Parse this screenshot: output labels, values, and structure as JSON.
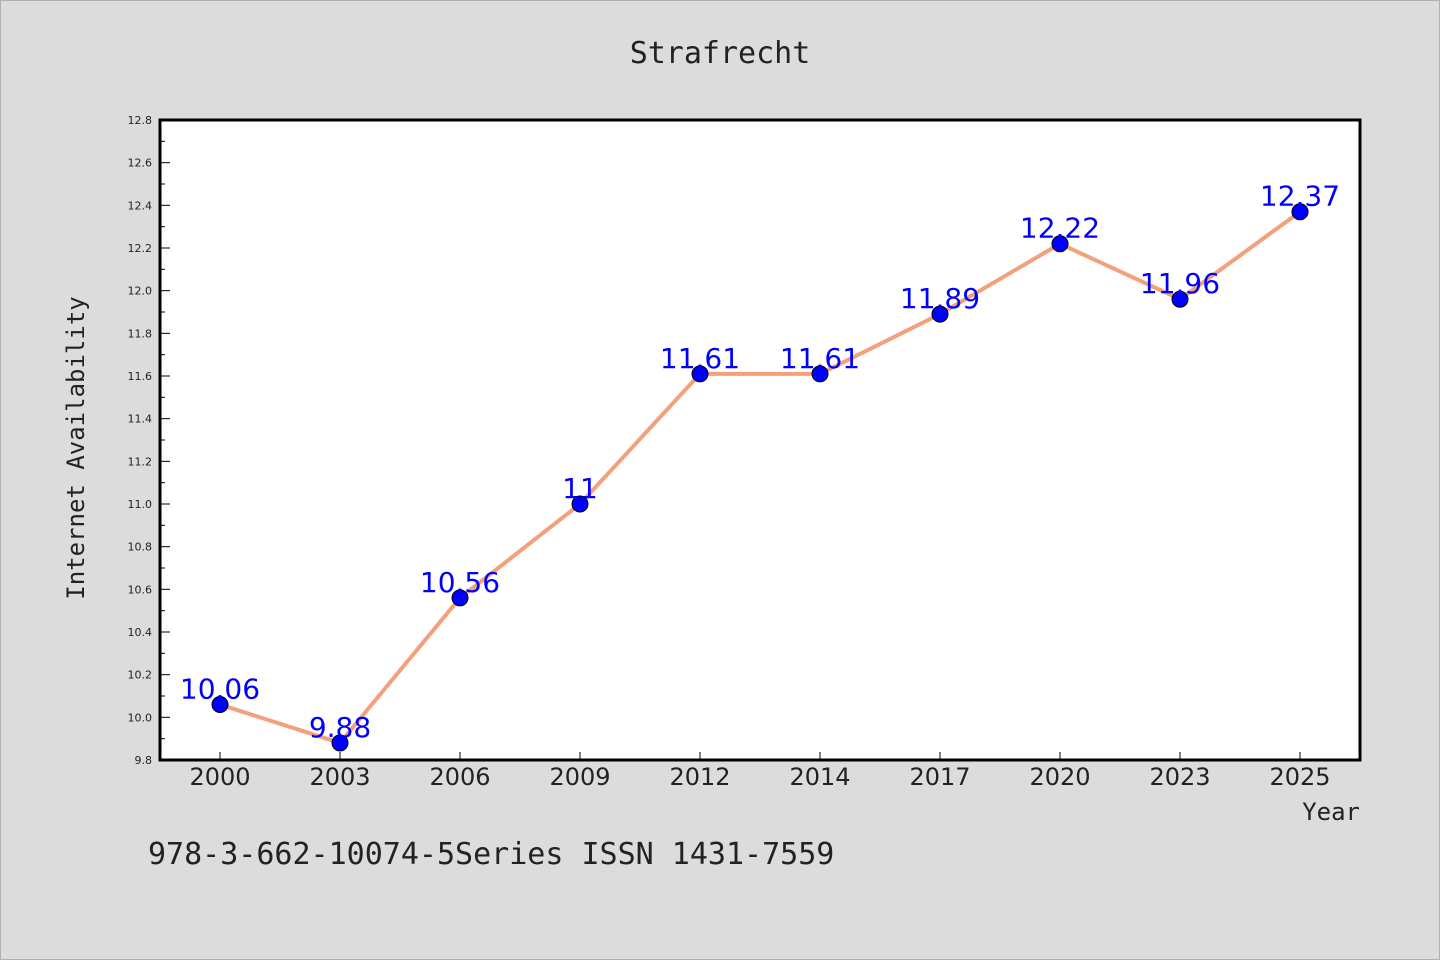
{
  "chart_data": {
    "type": "line",
    "title": "Strafrecht",
    "xlabel": "Year",
    "ylabel": "Internet Availability",
    "categories": [
      "2000",
      "2003",
      "2006",
      "2009",
      "2012",
      "2014",
      "2017",
      "2020",
      "2023",
      "2025"
    ],
    "series": [
      {
        "values": [
          10.06,
          9.88,
          10.56,
          11.0,
          11.61,
          11.61,
          11.89,
          12.22,
          11.96,
          12.37
        ],
        "data_labels": [
          "10.06",
          "9.88",
          "10.56",
          "11",
          "11.61",
          "11.61",
          "11.89",
          "12.22",
          "11.96",
          "12.37"
        ]
      }
    ],
    "ylim": [
      9.8,
      12.8
    ],
    "yticks": [
      "9.8",
      "10.0",
      "10.2",
      "10.4",
      "10.6",
      "10.8",
      "11.0",
      "11.2",
      "11.4",
      "11.6",
      "11.8",
      "12.0",
      "12.2",
      "12.4",
      "12.6",
      "12.8"
    ],
    "grid": false,
    "legend": "none",
    "colors": {
      "line": "#f4a07c",
      "marker": "#0000ff",
      "label": "#0000ff",
      "background": "#dcdcdc",
      "plot_bg": "#ffffff"
    }
  },
  "footer": {
    "text": "978-3-662-10074-5Series ISSN 1431-7559"
  }
}
